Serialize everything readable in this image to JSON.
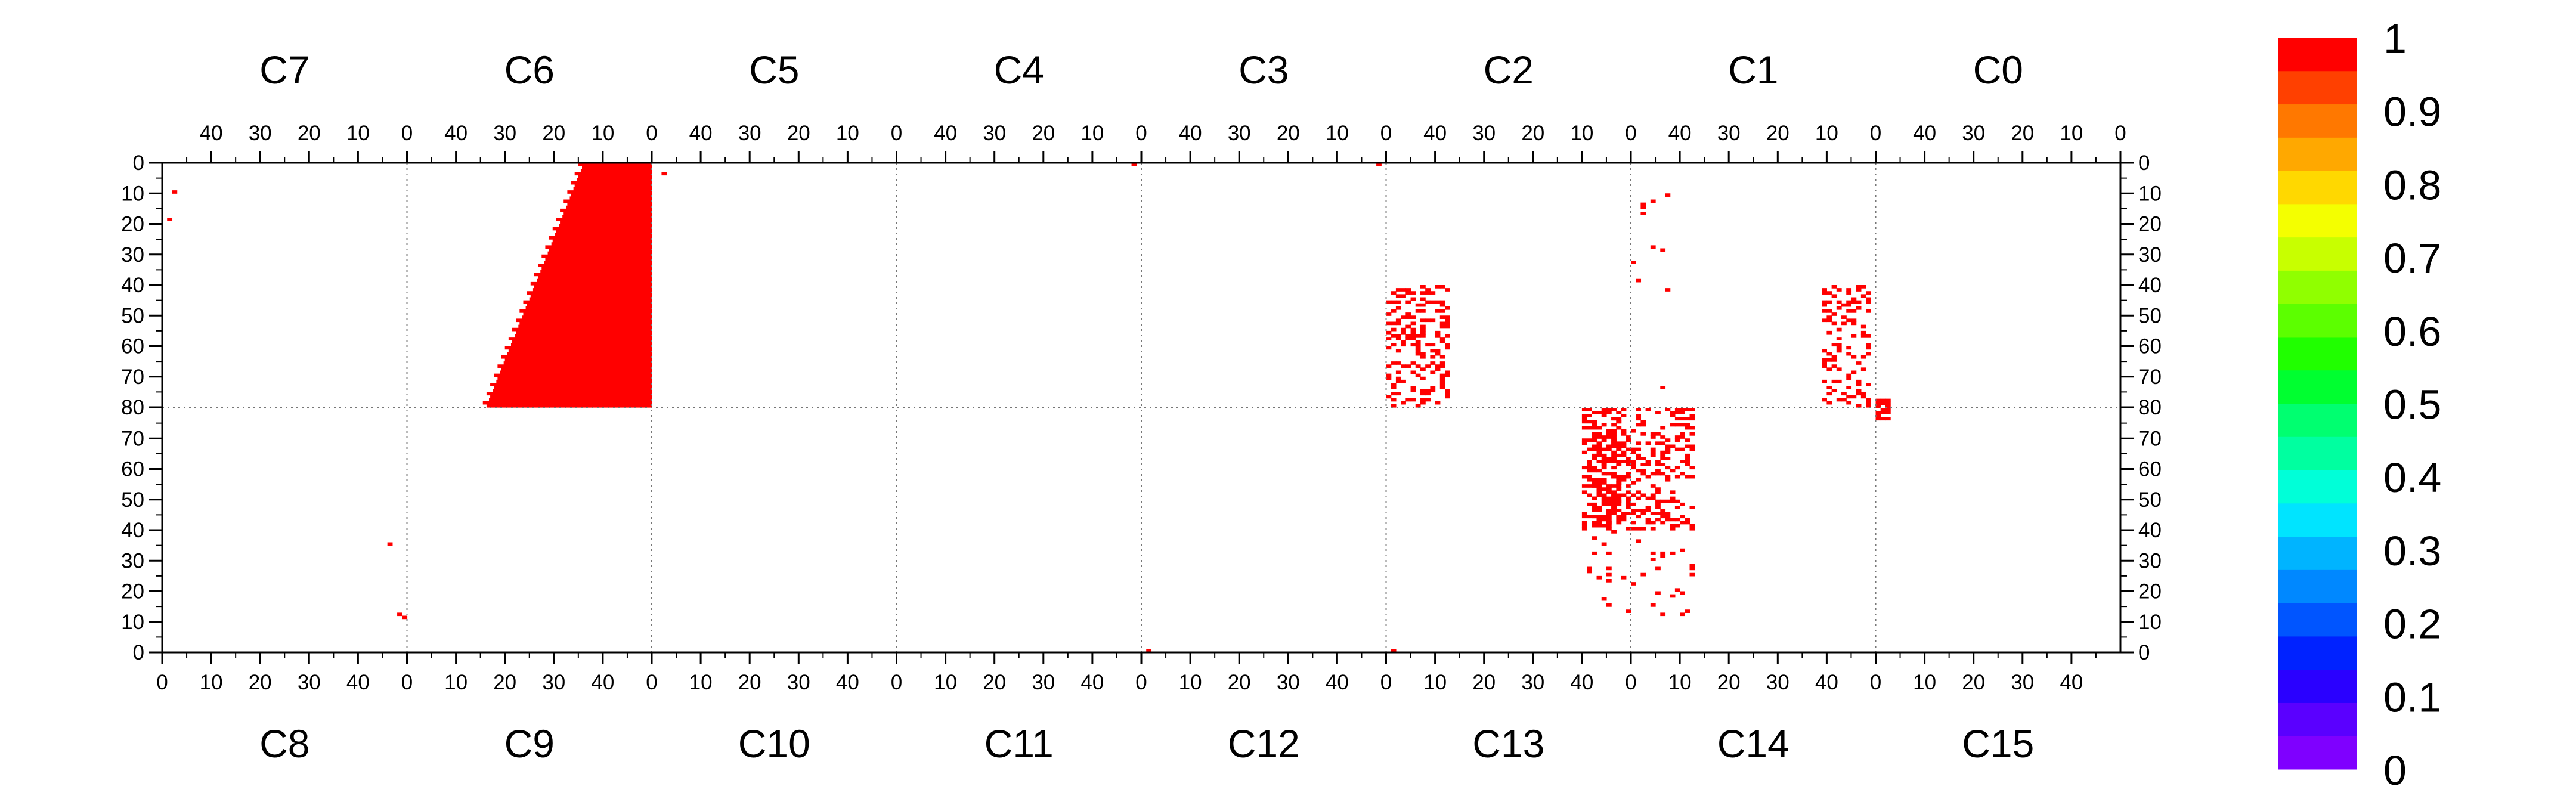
{
  "chart_data": {
    "type": "heatmap",
    "chamber_labels_top": [
      "C7",
      "C6",
      "C5",
      "C4",
      "C3",
      "C2",
      "C1",
      "C0"
    ],
    "chamber_labels_bottom": [
      "C8",
      "C9",
      "C10",
      "C11",
      "C12",
      "C13",
      "C14",
      "C15"
    ],
    "x_ticks_top": [
      "40",
      "30",
      "20",
      "10",
      "0"
    ],
    "x_ticks_bottom": [
      "0",
      "10",
      "20",
      "30",
      "40"
    ],
    "y_ticks_upper": [
      "0",
      "10",
      "20",
      "30",
      "40",
      "50",
      "60",
      "70",
      "80"
    ],
    "y_ticks_lower": [
      "70",
      "60",
      "50",
      "40",
      "30",
      "20",
      "10",
      "0"
    ],
    "colorbar": {
      "min": 0,
      "max": 1,
      "labels": [
        "1",
        "0.9",
        "0.8",
        "0.7",
        "0.6",
        "0.5",
        "0.4",
        "0.3",
        "0.2",
        "0.1",
        "0"
      ],
      "colors": [
        "#7f00ff",
        "#5a00ff",
        "#2a00ff",
        "#0022ff",
        "#0055ff",
        "#0088ff",
        "#00b4ff",
        "#00e4ff",
        "#00ffd8",
        "#00ffa0",
        "#00ff70",
        "#00ff30",
        "#20ff00",
        "#5cff00",
        "#90ff00",
        "#c8ff00",
        "#f4ff00",
        "#ffd800",
        "#ffa800",
        "#ff7800",
        "#ff4000",
        "#ff0000"
      ]
    },
    "cell_value": 1,
    "cell_color": "#ff0000",
    "regions": [
      {
        "chamber": "C6",
        "kind": "block",
        "rows_from": 0,
        "rows_to": 80,
        "full_col_at_row0": 36,
        "full_col_at_row80": 16,
        "value": 1
      },
      {
        "chamber": "C14",
        "kind": "scatter",
        "cols_from": -9,
        "cols_to": 13,
        "rows_from": 10,
        "rows_to": 80,
        "density": "dense",
        "value": 1
      },
      {
        "chamber": "C13",
        "kind": "scatter",
        "cols_from": 40,
        "cols_to": 48,
        "rows_from": 40,
        "rows_to": 80,
        "density": "dense",
        "value": 1
      },
      {
        "chamber": "C15",
        "kind": "spot",
        "cols_from": 0,
        "cols_to": 3,
        "rows_from": 76,
        "rows_to": 83,
        "value": 1
      }
    ],
    "spots": [
      {
        "chamber": "C7",
        "col": 47,
        "row": 9,
        "value": 1
      },
      {
        "chamber": "C7",
        "col": 48,
        "row": 18,
        "value": 1
      },
      {
        "chamber": "C8",
        "col": 46,
        "row": 35,
        "value": 1
      },
      {
        "chamber": "C8",
        "col": 48,
        "row": 12,
        "value": 1
      },
      {
        "chamber": "C8",
        "col": 49,
        "row": 11,
        "value": 1
      },
      {
        "chamber": "C5",
        "col": 47,
        "row": 3,
        "value": 1
      },
      {
        "chamber": "C4",
        "col": 1,
        "row": 0,
        "value": 1
      },
      {
        "chamber": "C3",
        "col": 1,
        "row": 0,
        "value": 1
      },
      {
        "chamber": "C12",
        "col": 1,
        "row": 0,
        "value": 1
      },
      {
        "chamber": "C13",
        "col": 1,
        "row": 0,
        "value": 1
      },
      {
        "chamber": "C1",
        "col": 42,
        "row": 41,
        "value": 1
      },
      {
        "chamber": "C1",
        "col": 43,
        "row": 73,
        "value": 1
      }
    ]
  }
}
